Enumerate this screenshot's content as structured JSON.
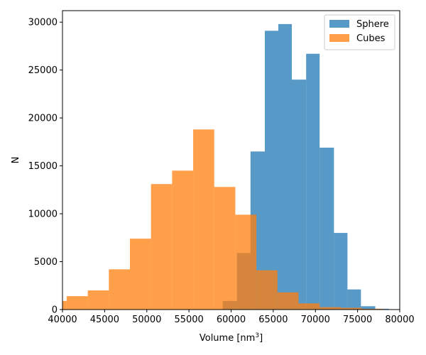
{
  "chart_data": {
    "type": "bar",
    "subtype": "overlapping-histogram",
    "xlabel": "Volume [nm",
    "xlabel_sup": "3",
    "xlabel_close": "]",
    "ylabel": "N",
    "xlim": [
      40000,
      80000
    ],
    "ylim": [
      0,
      31200
    ],
    "xticks": [
      "40000",
      "45000",
      "50000",
      "55000",
      "60000",
      "65000",
      "70000",
      "75000",
      "80000"
    ],
    "xtick_values": [
      40000,
      45000,
      50000,
      55000,
      60000,
      65000,
      70000,
      75000,
      80000
    ],
    "yticks": [
      "0",
      "5000",
      "10000",
      "15000",
      "20000",
      "25000",
      "30000"
    ],
    "ytick_values": [
      0,
      5000,
      10000,
      15000,
      20000,
      25000,
      30000
    ],
    "legend_position": "top-right",
    "grid": false,
    "series": [
      {
        "name": "Sphere",
        "color": "#1f77b4",
        "alpha": 0.75,
        "bins": [
          {
            "x0": 59000,
            "x1": 60700,
            "value": 900
          },
          {
            "x0": 60700,
            "x1": 62300,
            "value": 5900
          },
          {
            "x0": 62300,
            "x1": 64000,
            "value": 16500
          },
          {
            "x0": 64000,
            "x1": 65600,
            "value": 29100
          },
          {
            "x0": 65600,
            "x1": 67200,
            "value": 29800
          },
          {
            "x0": 67200,
            "x1": 68900,
            "value": 24000
          },
          {
            "x0": 68900,
            "x1": 70500,
            "value": 26700
          },
          {
            "x0": 70500,
            "x1": 72200,
            "value": 16900
          },
          {
            "x0": 72200,
            "x1": 73800,
            "value": 8000
          },
          {
            "x0": 73800,
            "x1": 75400,
            "value": 2100
          },
          {
            "x0": 75400,
            "x1": 77100,
            "value": 350
          },
          {
            "x0": 77100,
            "x1": 78700,
            "value": 80
          }
        ]
      },
      {
        "name": "Cubes",
        "color": "#ff7f0e",
        "alpha": 0.75,
        "bins": [
          {
            "x0": 37900,
            "x1": 40500,
            "value": 900
          },
          {
            "x0": 40500,
            "x1": 43000,
            "value": 1400
          },
          {
            "x0": 43000,
            "x1": 45500,
            "value": 2000
          },
          {
            "x0": 45500,
            "x1": 48000,
            "value": 4200
          },
          {
            "x0": 48000,
            "x1": 50500,
            "value": 7400
          },
          {
            "x0": 50500,
            "x1": 53000,
            "value": 13100
          },
          {
            "x0": 53000,
            "x1": 55500,
            "value": 14500
          },
          {
            "x0": 55500,
            "x1": 58000,
            "value": 18800
          },
          {
            "x0": 58000,
            "x1": 60500,
            "value": 12800
          },
          {
            "x0": 60500,
            "x1": 63000,
            "value": 9900
          },
          {
            "x0": 63000,
            "x1": 65500,
            "value": 4100
          },
          {
            "x0": 65500,
            "x1": 68000,
            "value": 1800
          },
          {
            "x0": 68000,
            "x1": 70500,
            "value": 650
          },
          {
            "x0": 70500,
            "x1": 73000,
            "value": 250
          },
          {
            "x0": 73000,
            "x1": 75500,
            "value": 180
          },
          {
            "x0": 75500,
            "x1": 78000,
            "value": 80
          },
          {
            "x0": 78000,
            "x1": 80500,
            "value": 30
          }
        ]
      }
    ]
  }
}
